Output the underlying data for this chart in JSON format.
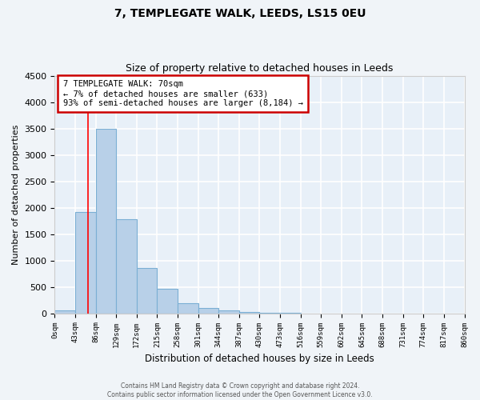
{
  "title": "7, TEMPLEGATE WALK, LEEDS, LS15 0EU",
  "subtitle": "Size of property relative to detached houses in Leeds",
  "xlabel": "Distribution of detached houses by size in Leeds",
  "ylabel": "Number of detached properties",
  "bin_edges": [
    0,
    43,
    86,
    129,
    172,
    215,
    258,
    301,
    344,
    387,
    430,
    473,
    516,
    559,
    602,
    645,
    688,
    731,
    774,
    817,
    860
  ],
  "bin_labels": [
    "0sqm",
    "43sqm",
    "86sqm",
    "129sqm",
    "172sqm",
    "215sqm",
    "258sqm",
    "301sqm",
    "344sqm",
    "387sqm",
    "430sqm",
    "473sqm",
    "516sqm",
    "559sqm",
    "602sqm",
    "645sqm",
    "688sqm",
    "731sqm",
    "774sqm",
    "817sqm",
    "860sqm"
  ],
  "bar_heights": [
    50,
    1920,
    3490,
    1780,
    855,
    460,
    185,
    100,
    55,
    30,
    10,
    5,
    2,
    0,
    0,
    0,
    0,
    0,
    0,
    0
  ],
  "bar_color": "#b8d0e8",
  "bar_edge_color": "#7bafd4",
  "red_line_x": 70,
  "ylim": [
    0,
    4500
  ],
  "yticks": [
    0,
    500,
    1000,
    1500,
    2000,
    2500,
    3000,
    3500,
    4000,
    4500
  ],
  "annotation_title": "7 TEMPLEGATE WALK: 70sqm",
  "annotation_line1": "← 7% of detached houses are smaller (633)",
  "annotation_line2": "93% of semi-detached houses are larger (8,184) →",
  "annotation_box_color": "#ffffff",
  "annotation_box_edge_color": "#cc0000",
  "footer_line1": "Contains HM Land Registry data © Crown copyright and database right 2024.",
  "footer_line2": "Contains public sector information licensed under the Open Government Licence v3.0.",
  "bg_color": "#f0f4f8",
  "plot_bg_color": "#e8f0f8",
  "grid_color": "#ffffff",
  "title_fontsize": 10,
  "subtitle_fontsize": 9
}
